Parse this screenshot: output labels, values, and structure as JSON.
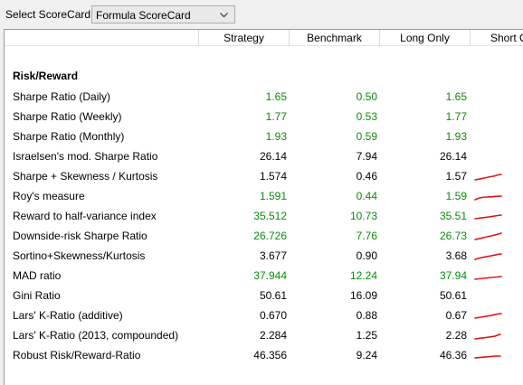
{
  "toolbar": {
    "select_label": "Select ScoreCard:",
    "scorecard_value": "Formula ScoreCard"
  },
  "columns": [
    "Strategy",
    "Benchmark",
    "Long Only",
    "Short O"
  ],
  "section_title": "Risk/Reward",
  "rows": [
    {
      "label": "Sharpe Ratio (Daily)",
      "strategy": "1.65",
      "benchmark": "0.50",
      "long_only": "1.65",
      "color": "green"
    },
    {
      "label": "Sharpe Ratio (Weekly)",
      "strategy": "1.77",
      "benchmark": "0.53",
      "long_only": "1.77",
      "color": "green"
    },
    {
      "label": "Sharpe Ratio (Monthly)",
      "strategy": "1.93",
      "benchmark": "0.59",
      "long_only": "1.93",
      "color": "green"
    },
    {
      "label": "Israelsen's mod. Sharpe Ratio",
      "strategy": "26.14",
      "benchmark": "7.94",
      "long_only": "26.14",
      "color": "black"
    },
    {
      "label": "Sharpe + Skewness / Kurtosis",
      "strategy": "1.574",
      "benchmark": "0.46",
      "long_only": "1.57",
      "color": "black"
    },
    {
      "label": "Roy's measure",
      "strategy": "1.591",
      "benchmark": "0.44",
      "long_only": "1.59",
      "color": "green"
    },
    {
      "label": "Reward to half-variance index",
      "strategy": "35.512",
      "benchmark": "10.73",
      "long_only": "35.51",
      "color": "green"
    },
    {
      "label": "Downside-risk Sharpe Ratio",
      "strategy": "26.726",
      "benchmark": "7.76",
      "long_only": "26.73",
      "color": "green"
    },
    {
      "label": "Sortino+Skewness/Kurtosis",
      "strategy": "3.677",
      "benchmark": "0.90",
      "long_only": "3.68",
      "color": "black"
    },
    {
      "label": "MAD ratio",
      "strategy": "37.944",
      "benchmark": "12.24",
      "long_only": "37.94",
      "color": "green"
    },
    {
      "label": "Gini Ratio",
      "strategy": "50.61",
      "benchmark": "16.09",
      "long_only": "50.61",
      "color": "black"
    },
    {
      "label": "Lars' K-Ratio (additive)",
      "strategy": "0.670",
      "benchmark": "0.88",
      "long_only": "0.67",
      "color": "black"
    },
    {
      "label": "Lars' K-Ratio (2013, compounded)",
      "strategy": "2.284",
      "benchmark": "1.25",
      "long_only": "2.28",
      "color": "black"
    },
    {
      "label": "Robust Risk/Reward-Ratio",
      "strategy": "46.356",
      "benchmark": "9.24",
      "long_only": "46.36",
      "color": "black"
    }
  ],
  "colors": {
    "green": "#0b8a0b",
    "black": "#000000",
    "annotation": "#e01010"
  },
  "annotated_rows": [
    4,
    5,
    6,
    7,
    8,
    9,
    11,
    12,
    13
  ]
}
